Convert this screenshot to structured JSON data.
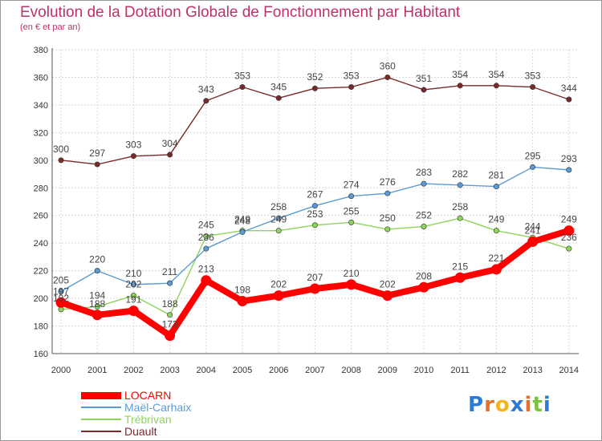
{
  "title": "Evolution de la Dotation Globale de Fonctionnement par Habitant",
  "subtitle": "(en € et par an)",
  "logo": {
    "text": "Proxiti"
  },
  "chart_data": {
    "type": "line",
    "x": [
      "2000",
      "2001",
      "2002",
      "2003",
      "2004",
      "2005",
      "2006",
      "2007",
      "2008",
      "2009",
      "2010",
      "2011",
      "2012",
      "2013",
      "2014"
    ],
    "ylim": [
      160,
      380
    ],
    "yticks": [
      160,
      180,
      200,
      220,
      240,
      260,
      280,
      300,
      320,
      340,
      360,
      380
    ],
    "grid": true,
    "legend": "bottom-left",
    "series": [
      {
        "name": "LOCARN",
        "color": "#ff0000",
        "values": [
          197,
          188,
          191,
          173,
          213,
          198,
          202,
          207,
          210,
          202,
          208,
          215,
          221,
          241,
          249
        ]
      },
      {
        "name": "Maël-Carhaix",
        "color": "#5b9bd5",
        "values": [
          205,
          220,
          210,
          211,
          236,
          248,
          258,
          267,
          274,
          276,
          283,
          282,
          281,
          295,
          293
        ]
      },
      {
        "name": "Trébrivan",
        "color": "#8fd45a",
        "values": [
          192,
          194,
          202,
          188,
          245,
          249,
          249,
          253,
          255,
          250,
          252,
          258,
          249,
          244,
          236
        ]
      },
      {
        "name": "Duault",
        "color": "#7a2a2a",
        "values": [
          300,
          297,
          303,
          304,
          343,
          353,
          345,
          352,
          353,
          360,
          351,
          354,
          354,
          353,
          344
        ]
      }
    ]
  }
}
